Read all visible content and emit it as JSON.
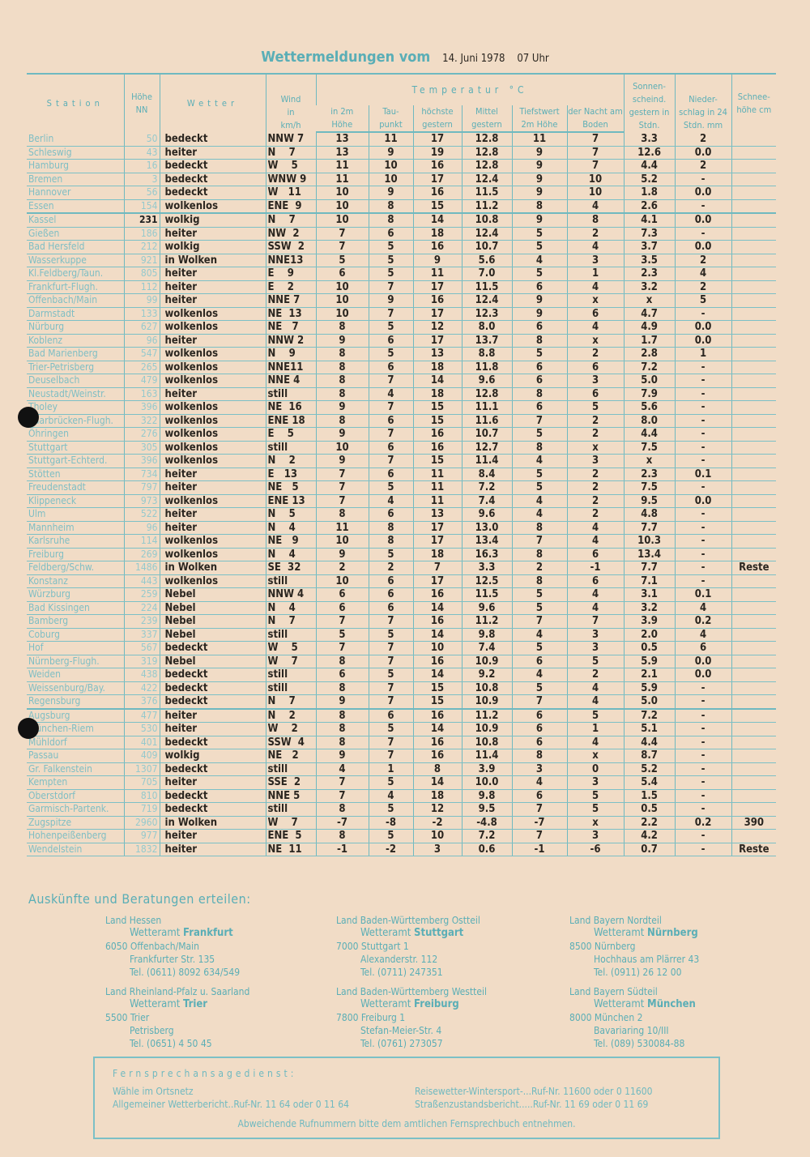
{
  "title": {
    "main": "Wettermeldungen vom",
    "date": "14. Juni 1978",
    "time": "07 Uhr"
  },
  "headers": {
    "station": "Station",
    "hoehe": "Höhe NN",
    "wetter": "Wetter",
    "wind": "Wind in km/h",
    "temperatur": "Temperatur °C",
    "t2m": "in 2m Höhe",
    "taupunkt": "Tau- punkt",
    "hoechste": "höchste gestern",
    "mittel": "Mittel gestern",
    "tiefst": "Tiefstwert 2m Höhe",
    "nacht": "der Nacht am Boden",
    "sonne": "Sonnen- scheind. gestern in Stdn.",
    "nieder": "Nieder- schlag in 24 Stdn. mm",
    "schnee": "Schnee- höhe cm"
  },
  "rows": [
    [
      "Berlin",
      "50",
      "bedeckt",
      "NNW 7",
      "13",
      "11",
      "17",
      "12.8",
      "11",
      "7",
      "3.3",
      "2",
      ""
    ],
    [
      "Schleswig",
      "43",
      "heiter",
      "N    7",
      "13",
      "9",
      "19",
      "12.8",
      "9",
      "7",
      "12.6",
      "0.0",
      ""
    ],
    [
      "Hamburg",
      "16",
      "bedeckt",
      "W    5",
      "11",
      "10",
      "16",
      "12.8",
      "9",
      "7",
      "4.4",
      "2",
      ""
    ],
    [
      "Bremen",
      "3",
      "bedeckt",
      "WNW 9",
      "11",
      "10",
      "17",
      "12.4",
      "9",
      "10",
      "5.2",
      "-",
      ""
    ],
    [
      "Hannover",
      "56",
      "bedeckt",
      "W   11",
      "10",
      "9",
      "16",
      "11.5",
      "9",
      "10",
      "1.8",
      "0.0",
      ""
    ],
    [
      "Essen",
      "154",
      "wolkenlos",
      "ENE  9",
      "10",
      "8",
      "15",
      "11.2",
      "8",
      "4",
      "2.6",
      "-",
      ""
    ],
    [
      "Kassel",
      "231",
      "wolkig",
      "N    7",
      "10",
      "8",
      "14",
      "10.8",
      "9",
      "8",
      "4.1",
      "0.0",
      ""
    ],
    [
      "Gießen",
      "186",
      "heiter",
      "NW  2",
      "7",
      "6",
      "18",
      "12.4",
      "5",
      "2",
      "7.3",
      "-",
      ""
    ],
    [
      "Bad Hersfeld",
      "212",
      "wolkig",
      "SSW  2",
      "7",
      "5",
      "16",
      "10.7",
      "5",
      "4",
      "3.7",
      "0.0",
      ""
    ],
    [
      "Wasserkuppe",
      "921",
      "in Wolken",
      "NNE13",
      "5",
      "5",
      "9",
      "5.6",
      "4",
      "3",
      "3.5",
      "2",
      ""
    ],
    [
      "Kl.Feldberg/Taun.",
      "805",
      "heiter",
      "E    9",
      "6",
      "5",
      "11",
      "7.0",
      "5",
      "1",
      "2.3",
      "4",
      ""
    ],
    [
      "Frankfurt-Flugh.",
      "112",
      "heiter",
      "E    2",
      "10",
      "7",
      "17",
      "11.5",
      "6",
      "4",
      "3.2",
      "2",
      ""
    ],
    [
      "Offenbach/Main",
      "99",
      "heiter",
      "NNE 7",
      "10",
      "9",
      "16",
      "12.4",
      "9",
      "x",
      "x",
      "5",
      ""
    ],
    [
      "Darmstadt",
      "133",
      "wolkenlos",
      "NE  13",
      "10",
      "7",
      "17",
      "12.3",
      "9",
      "6",
      "4.7",
      "-",
      ""
    ],
    [
      "Nürburg",
      "627",
      "wolkenlos",
      "NE   7",
      "8",
      "5",
      "12",
      "8.0",
      "6",
      "4",
      "4.9",
      "0.0",
      ""
    ],
    [
      "Koblenz",
      "96",
      "heiter",
      "NNW 2",
      "9",
      "6",
      "17",
      "13.7",
      "8",
      "x",
      "1.7",
      "0.0",
      ""
    ],
    [
      "Bad Marienberg",
      "547",
      "wolkenlos",
      "N    9",
      "8",
      "5",
      "13",
      "8.8",
      "5",
      "2",
      "2.8",
      "1",
      ""
    ],
    [
      "Trier-Petrisberg",
      "265",
      "wolkenlos",
      "NNE11",
      "8",
      "6",
      "18",
      "11.8",
      "6",
      "6",
      "7.2",
      "-",
      ""
    ],
    [
      "Deuselbach",
      "479",
      "wolkenlos",
      "NNE 4",
      "8",
      "7",
      "14",
      "9.6",
      "6",
      "3",
      "5.0",
      "-",
      ""
    ],
    [
      "Neustadt/Weinstr.",
      "163",
      "heiter",
      "still",
      "8",
      "4",
      "18",
      "12.8",
      "8",
      "6",
      "7.9",
      "-",
      ""
    ],
    [
      "Tholey",
      "396",
      "wolkenlos",
      "NE  16",
      "9",
      "7",
      "15",
      "11.1",
      "6",
      "5",
      "5.6",
      "-",
      ""
    ],
    [
      "Saarbrücken-Flugh.",
      "322",
      "wolkenlos",
      "ENE 18",
      "8",
      "6",
      "15",
      "11.6",
      "7",
      "2",
      "8.0",
      "-",
      ""
    ],
    [
      "Öhringen",
      "276",
      "wolkenlos",
      "E    5",
      "9",
      "7",
      "16",
      "10.7",
      "5",
      "2",
      "4.4",
      "-",
      ""
    ],
    [
      "Stuttgart",
      "305",
      "wolkenlos",
      "still",
      "10",
      "6",
      "16",
      "12.7",
      "8",
      "x",
      "7.5",
      "-",
      ""
    ],
    [
      "Stuttgart-Echterd.",
      "396",
      "wolkenlos",
      "N    2",
      "9",
      "7",
      "15",
      "11.4",
      "4",
      "3",
      "x",
      "-",
      ""
    ],
    [
      "Stötten",
      "734",
      "heiter",
      "E   13",
      "7",
      "6",
      "11",
      "8.4",
      "5",
      "2",
      "2.3",
      "0.1",
      ""
    ],
    [
      "Freudenstadt",
      "797",
      "heiter",
      "NE   5",
      "7",
      "5",
      "11",
      "7.2",
      "5",
      "2",
      "7.5",
      "-",
      ""
    ],
    [
      "Klippeneck",
      "973",
      "wolkenlos",
      "ENE 13",
      "7",
      "4",
      "11",
      "7.4",
      "4",
      "2",
      "9.5",
      "0.0",
      ""
    ],
    [
      "Ulm",
      "522",
      "heiter",
      "N    5",
      "8",
      "6",
      "13",
      "9.6",
      "4",
      "2",
      "4.8",
      "-",
      ""
    ],
    [
      "Mannheim",
      "96",
      "heiter",
      "N    4",
      "11",
      "8",
      "17",
      "13.0",
      "8",
      "4",
      "7.7",
      "-",
      ""
    ],
    [
      "Karlsruhe",
      "114",
      "wolkenlos",
      "NE   9",
      "10",
      "8",
      "17",
      "13.4",
      "7",
      "4",
      "10.3",
      "-",
      ""
    ],
    [
      "Freiburg",
      "269",
      "wolkenlos",
      "N    4",
      "9",
      "5",
      "18",
      "16.3",
      "8",
      "6",
      "13.4",
      "-",
      ""
    ],
    [
      "Feldberg/Schw.",
      "1486",
      "in Wolken",
      "SE  32",
      "2",
      "2",
      "7",
      "3.3",
      "2",
      "-1",
      "7.7",
      "-",
      "Reste"
    ],
    [
      "Konstanz",
      "443",
      "wolkenlos",
      "still",
      "10",
      "6",
      "17",
      "12.5",
      "8",
      "6",
      "7.1",
      "-",
      ""
    ],
    [
      "Würzburg",
      "259",
      "Nebel",
      "NNW 4",
      "6",
      "6",
      "16",
      "11.5",
      "5",
      "4",
      "3.1",
      "0.1",
      ""
    ],
    [
      "Bad Kissingen",
      "224",
      "Nebel",
      "N    4",
      "6",
      "6",
      "14",
      "9.6",
      "5",
      "4",
      "3.2",
      "4",
      ""
    ],
    [
      "Bamberg",
      "239",
      "Nebel",
      "N    7",
      "7",
      "7",
      "16",
      "11.2",
      "7",
      "7",
      "3.9",
      "0.2",
      ""
    ],
    [
      "Coburg",
      "337",
      "Nebel",
      "still",
      "5",
      "5",
      "14",
      "9.8",
      "4",
      "3",
      "2.0",
      "4",
      ""
    ],
    [
      "Hof",
      "567",
      "bedeckt",
      "W    5",
      "7",
      "7",
      "10",
      "7.4",
      "5",
      "3",
      "0.5",
      "6",
      ""
    ],
    [
      "Nürnberg-Flugh.",
      "319",
      "Nebel",
      "W    7",
      "8",
      "7",
      "16",
      "10.9",
      "6",
      "5",
      "5.9",
      "0.0",
      ""
    ],
    [
      "Weiden",
      "438",
      "bedeckt",
      "still",
      "6",
      "5",
      "14",
      "9.2",
      "4",
      "2",
      "2.1",
      "0.0",
      ""
    ],
    [
      "Weissenburg/Bay.",
      "422",
      "bedeckt",
      "still",
      "8",
      "7",
      "15",
      "10.8",
      "5",
      "4",
      "5.9",
      "-",
      ""
    ],
    [
      "Regensburg",
      "376",
      "bedeckt",
      "N    7",
      "9",
      "7",
      "15",
      "10.9",
      "7",
      "4",
      "5.0",
      "-",
      ""
    ],
    [
      "Augsburg",
      "477",
      "heiter",
      "N    2",
      "8",
      "6",
      "16",
      "11.2",
      "6",
      "5",
      "7.2",
      "-",
      ""
    ],
    [
      "München-Riem",
      "530",
      "heiter",
      "W    2",
      "8",
      "5",
      "14",
      "10.9",
      "6",
      "1",
      "5.1",
      "-",
      ""
    ],
    [
      "Mühldorf",
      "401",
      "bedeckt",
      "SSW  4",
      "8",
      "7",
      "16",
      "10.8",
      "6",
      "4",
      "4.4",
      "-",
      ""
    ],
    [
      "Passau",
      "409",
      "wolkig",
      "NE   2",
      "9",
      "7",
      "16",
      "11.4",
      "8",
      "x",
      "8.7",
      "-",
      ""
    ],
    [
      "Gr. Falkenstein",
      "1307",
      "bedeckt",
      "still",
      "4",
      "1",
      "8",
      "3.9",
      "3",
      "0",
      "5.2",
      "-",
      ""
    ],
    [
      "Kempten",
      "705",
      "heiter",
      "SSE  2",
      "7",
      "5",
      "14",
      "10.0",
      "4",
      "3",
      "5.4",
      "-",
      ""
    ],
    [
      "Oberstdorf",
      "810",
      "bedeckt",
      "NNE 5",
      "7",
      "4",
      "18",
      "9.8",
      "6",
      "5",
      "1.5",
      "-",
      ""
    ],
    [
      "Garmisch-Partenk.",
      "719",
      "bedeckt",
      "still",
      "8",
      "5",
      "12",
      "9.5",
      "7",
      "5",
      "0.5",
      "-",
      ""
    ],
    [
      "Zugspitze",
      "2960",
      "in Wolken",
      "W    7",
      "-7",
      "-8",
      "-2",
      "-4.8",
      "-7",
      "x",
      "2.2",
      "0.2",
      "390"
    ],
    [
      "Hohenpeißenberg",
      "977",
      "heiter",
      "ENE  5",
      "8",
      "5",
      "10",
      "7.2",
      "7",
      "3",
      "4.2",
      "-",
      ""
    ],
    [
      "Wendelstein",
      "1832",
      "heiter",
      "NE  11",
      "-1",
      "-2",
      "3",
      "0.6",
      "-1",
      "-6",
      "0.7",
      "-",
      "Reste"
    ]
  ],
  "info": {
    "heading": "Auskünfte und Beratungen erteilen:",
    "offices": [
      {
        "region": "Land Hessen",
        "prefix": "Wetteramt",
        "name": "Frankfurt",
        "city": "6050 Offenbach/Main",
        "street": "Frankfurter Str. 135",
        "tel": "Tel. (0611) 8092 634/549"
      },
      {
        "region": "Land Baden-Württemberg Ostteil",
        "prefix": "Wetteramt",
        "name": "Stuttgart",
        "city": "7000 Stuttgart 1",
        "street": "Alexanderstr. 112",
        "tel": "Tel. (0711) 247351"
      },
      {
        "region": "Land Bayern Nordteil",
        "prefix": "Wetteramt",
        "name": "Nürnberg",
        "city": "8500 Nürnberg",
        "street": "Hochhaus am Plärrer 43",
        "tel": "Tel. (0911) 26 12 00"
      },
      {
        "region": "Land Rheinland-Pfalz u. Saarland",
        "prefix": "Wetteramt",
        "name": "Trier",
        "city": "5500 Trier",
        "street": "Petrisberg",
        "tel": "Tel. (0651) 4 50 45"
      },
      {
        "region": "Land Baden-Württemberg Westteil",
        "prefix": "Wetteramt",
        "name": "Freiburg",
        "city": "7800 Freiburg 1",
        "street": "Stefan-Meier-Str. 4",
        "tel": "Tel. (0761) 273057"
      },
      {
        "region": "Land Bayern Südteil",
        "prefix": "Wetteramt",
        "name": "München",
        "city": "8000 München 2",
        "street": "Bavariaring 10/III",
        "tel": "Tel. (089) 530084-88"
      }
    ]
  },
  "phone": {
    "heading": "Fernsprechansagedienst:",
    "dial": "Wähle im Ortsnetz",
    "general": "Allgemeiner Wetterbericht..Ruf-Nr. 11 64 oder 0 11 64",
    "travel": "Reisewetter-Wintersport-...Ruf-Nr. 11600 oder 0 11600",
    "roads": "Straßenzustandsbericht.....Ruf-Nr. 11 69 oder 0 11 69",
    "note": "Abweichende Rufnummern bitte dem amtlichen Fernsprechbuch entnehmen."
  }
}
